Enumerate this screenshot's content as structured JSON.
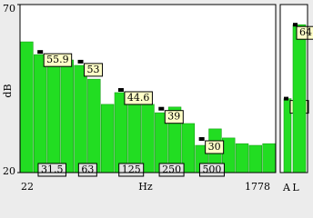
{
  "chart_data": [
    {
      "type": "bar",
      "ylabel": "dB",
      "xlabel": "Hz",
      "x_labels": [
        "22",
        "1778"
      ],
      "ylim": [
        20,
        70
      ],
      "yticks": [
        20,
        70
      ],
      "color": "#22dd22",
      "categories": [
        null,
        null,
        "31.5",
        null,
        null,
        "63",
        null,
        null,
        "125",
        null,
        null,
        "250",
        null,
        null,
        "500",
        null,
        null,
        null,
        null
      ],
      "values": [
        58.9,
        55.1,
        54.1,
        53.5,
        51.9,
        47.8,
        40.3,
        43.8,
        43.8,
        40.3,
        37.8,
        39.5,
        34.6,
        28.1,
        33.0,
        30.3,
        28.6,
        28.1,
        28.6
      ],
      "peak_values": [
        null,
        55.9,
        null,
        null,
        53,
        null,
        null,
        44.6,
        null,
        null,
        39,
        null,
        null,
        30,
        null,
        null,
        null,
        null,
        null
      ]
    },
    {
      "type": "meter",
      "ylim": [
        20,
        70
      ],
      "color": "#22dd22",
      "categories": [
        "A",
        "L"
      ],
      "values": [
        42,
        64
      ]
    }
  ]
}
